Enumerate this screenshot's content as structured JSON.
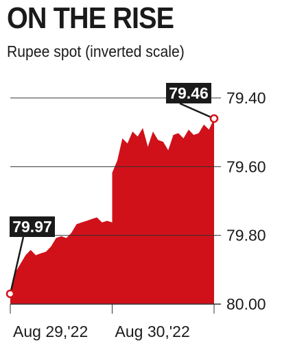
{
  "header": {
    "title": "ON THE RISE",
    "subtitle": "Rupee spot (inverted scale)"
  },
  "colors": {
    "area": "#d0111a",
    "text": "#1a1a1a",
    "grid": "#333333",
    "label_bg": "#1a1a1a",
    "label_text": "#ffffff"
  },
  "chart_data": {
    "type": "area",
    "title": "ON THE RISE",
    "subtitle": "Rupee spot (inverted scale)",
    "xlabel": "",
    "ylabel": "",
    "y_inverted": true,
    "ylim": [
      80.0,
      79.4
    ],
    "y_ticks": [
      "79.40",
      "79.60",
      "79.80",
      "80.00"
    ],
    "x_ticks": [
      "Aug 29,'22",
      "Aug 30,'22"
    ],
    "x": [
      0,
      0.05,
      0.1,
      0.15,
      0.2,
      0.25,
      0.3,
      0.35,
      0.4,
      0.45,
      0.5,
      0.55,
      0.6,
      0.65,
      0.7,
      0.75,
      0.8,
      0.85,
      0.9,
      0.95,
      1.0,
      1.0,
      1.05,
      1.1,
      1.15,
      1.2,
      1.25,
      1.3,
      1.35,
      1.4,
      1.45,
      1.5,
      1.55,
      1.6,
      1.65,
      1.7,
      1.75,
      1.8,
      1.85,
      1.9,
      1.95,
      2.0
    ],
    "values": [
      79.97,
      79.91,
      79.88,
      79.86,
      79.84,
      79.86,
      79.85,
      79.85,
      79.83,
      79.81,
      79.8,
      79.81,
      79.79,
      79.77,
      79.76,
      79.76,
      79.75,
      79.75,
      79.76,
      79.76,
      79.76,
      79.62,
      79.58,
      79.52,
      79.53,
      79.5,
      79.51,
      79.49,
      79.54,
      79.5,
      79.52,
      79.53,
      79.55,
      79.51,
      79.5,
      79.52,
      79.49,
      79.51,
      79.5,
      79.48,
      79.49,
      79.46
    ],
    "annotations": [
      {
        "text": "79.97",
        "point": "start"
      },
      {
        "text": "79.46",
        "point": "end"
      }
    ]
  }
}
